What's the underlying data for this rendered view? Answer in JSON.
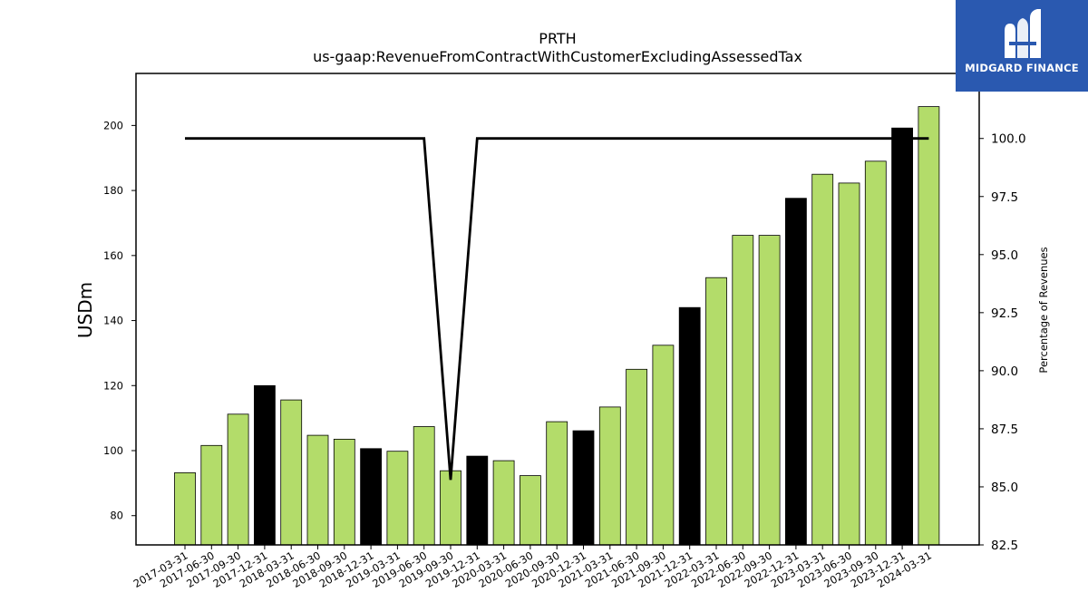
{
  "logo": {
    "text": "MIDGARD FINANCE"
  },
  "chart_data": {
    "type": "bar",
    "title": "PRTH",
    "subtitle": "us-gaap:RevenueFromContractWithCustomerExcludingAssessedTax",
    "ylabel": "USDm",
    "ylabel_right": "Percentage of Revenues",
    "ylim": [
      71,
      216
    ],
    "ylim_right": [
      82.5,
      102.8
    ],
    "yticks": [
      80,
      100,
      120,
      140,
      160,
      180,
      200
    ],
    "yticks_right": [
      "82.5",
      "85.0",
      "87.5",
      "90.0",
      "92.5",
      "95.0",
      "97.5",
      "100.0"
    ],
    "colors": {
      "quarter": "#b3dc6a",
      "year_end": "#000000",
      "line": "#000000"
    },
    "categories": [
      "2017-03-31",
      "2017-06-30",
      "2017-09-30",
      "2017-12-31",
      "2018-03-31",
      "2018-06-30",
      "2018-09-30",
      "2018-12-31",
      "2019-03-31",
      "2019-06-30",
      "2019-09-30",
      "2019-12-31",
      "2020-03-31",
      "2020-06-30",
      "2020-09-30",
      "2020-12-31",
      "2021-03-31",
      "2021-06-30",
      "2021-09-30",
      "2021-12-31",
      "2022-03-31",
      "2022-06-30",
      "2022-09-30",
      "2022-12-31",
      "2023-03-31",
      "2023-06-30",
      "2023-09-30",
      "2023-12-31",
      "2024-03-31"
    ],
    "series": [
      {
        "type": "bar",
        "values": [
          93.2,
          101.6,
          111.2,
          120.0,
          115.6,
          104.7,
          103.5,
          100.6,
          99.8,
          107.4,
          93.8,
          98.3,
          96.9,
          92.3,
          108.9,
          106.1,
          113.4,
          125.0,
          132.4,
          144.0,
          153.2,
          166.2,
          166.2,
          177.6,
          185.0,
          182.3,
          189.0,
          199.2,
          205.8
        ],
        "highlight": [
          false,
          false,
          false,
          true,
          false,
          false,
          false,
          true,
          false,
          false,
          false,
          true,
          false,
          false,
          false,
          true,
          false,
          false,
          false,
          true,
          false,
          false,
          false,
          true,
          false,
          false,
          false,
          true,
          false
        ]
      },
      {
        "type": "line",
        "axis": "right",
        "values": [
          100,
          100,
          100,
          100,
          100,
          100,
          100,
          100,
          100,
          100,
          85.3,
          100,
          100,
          100,
          100,
          100,
          100,
          100,
          100,
          100,
          100,
          100,
          100,
          100,
          100,
          100,
          100,
          100,
          100
        ]
      }
    ]
  }
}
